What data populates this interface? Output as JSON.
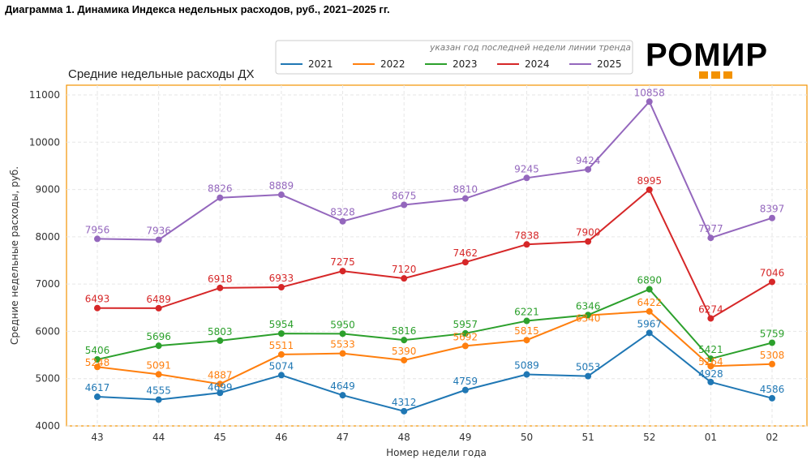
{
  "header": {
    "title": "Диаграмма 1. Динамика Индекса недельных расходов, руб., 2021–2025 гг."
  },
  "logo": {
    "text": "РОМИР",
    "accent": "#f39200"
  },
  "chart_data": {
    "type": "line",
    "title": "Средние недельные расходы ДХ",
    "xlabel": "Номер недели года",
    "ylabel": "Средние недельные расходы, руб.",
    "legend_title": "указан год последней недели линии тренда",
    "legend_position": "top-right",
    "grid": true,
    "ylim": [
      4000,
      11000
    ],
    "yticks": [
      4000,
      5000,
      6000,
      7000,
      8000,
      9000,
      10000,
      11000
    ],
    "categories": [
      "43",
      "44",
      "45",
      "46",
      "47",
      "48",
      "49",
      "50",
      "51",
      "52",
      "01",
      "02"
    ],
    "series": [
      {
        "name": "2021",
        "color": "#1f77b4",
        "values": [
          4617,
          4555,
          4699,
          5074,
          4649,
          4312,
          4759,
          5089,
          5053,
          5967,
          4928,
          4586
        ]
      },
      {
        "name": "2022",
        "color": "#ff7f0e",
        "values": [
          5248,
          5091,
          4887,
          5511,
          5533,
          5390,
          5692,
          5815,
          6340,
          6422,
          5264,
          5308
        ]
      },
      {
        "name": "2023",
        "color": "#2ca02c",
        "values": [
          5406,
          5696,
          5803,
          5954,
          5950,
          5816,
          5957,
          6221,
          6346,
          6890,
          5421,
          5759
        ]
      },
      {
        "name": "2024",
        "color": "#d62728",
        "values": [
          6493,
          6489,
          6918,
          6933,
          7275,
          7120,
          7462,
          7838,
          7900,
          8995,
          6274,
          7046
        ]
      },
      {
        "name": "2025",
        "color": "#9467bd",
        "values": [
          7956,
          7936,
          8826,
          8889,
          8328,
          8675,
          8810,
          9245,
          9424,
          10858,
          7977,
          8397
        ]
      }
    ]
  }
}
